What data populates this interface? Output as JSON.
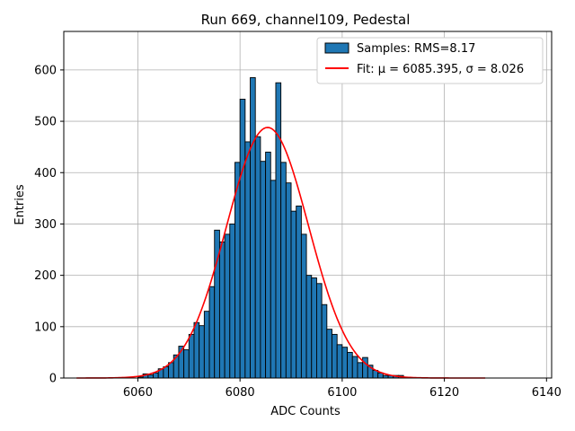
{
  "chart_data": {
    "type": "bar",
    "title": "Run 669, channel109, Pedestal",
    "xlabel": "ADC Counts",
    "ylabel": "Entries",
    "xlim": [
      6045.5,
      6141
    ],
    "ylim": [
      0,
      675
    ],
    "xticks": [
      6060,
      6080,
      6100,
      6120,
      6140
    ],
    "yticks": [
      0,
      100,
      200,
      300,
      400,
      500,
      600
    ],
    "grid": true,
    "legend_position": "top-right",
    "bin_width": 1,
    "bins": {
      "start": [
        6060,
        6061,
        6062,
        6063,
        6064,
        6065,
        6066,
        6067,
        6068,
        6069,
        6070,
        6071,
        6072,
        6073,
        6074,
        6075,
        6076,
        6077,
        6078,
        6079,
        6080,
        6081,
        6082,
        6083,
        6084,
        6085,
        6086,
        6087,
        6088,
        6089,
        6090,
        6091,
        6092,
        6093,
        6094,
        6095,
        6096,
        6097,
        6098,
        6099,
        6100,
        6101,
        6102,
        6103,
        6104,
        6105,
        6106,
        6107,
        6108,
        6109,
        6110,
        6111
      ],
      "counts": [
        2,
        8,
        6,
        10,
        18,
        22,
        30,
        45,
        62,
        55,
        85,
        108,
        102,
        130,
        178,
        288,
        265,
        280,
        300,
        420,
        543,
        460,
        585,
        470,
        422,
        440,
        385,
        575,
        420,
        380,
        325,
        335,
        280,
        200,
        195,
        184,
        143,
        95,
        85,
        65,
        60,
        50,
        42,
        30,
        40,
        25,
        15,
        10,
        5,
        5,
        5,
        5
      ]
    },
    "fit": {
      "mu": 6085.395,
      "sigma": 8.026,
      "amplitude": 488,
      "x_range": [
        6048,
        6128
      ],
      "color": "#ff0000"
    },
    "series": [
      {
        "name": "Samples: RMS=8.17",
        "kind": "histogram",
        "color": "#1f77b4"
      },
      {
        "name": "Fit: μ = 6085.395, σ = 8.026",
        "kind": "line",
        "color": "#ff0000"
      }
    ]
  }
}
